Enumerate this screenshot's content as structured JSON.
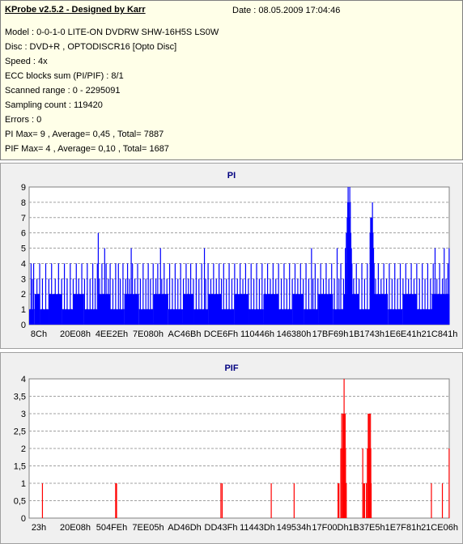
{
  "header": {
    "app_title": "KProbe v2.5.2 - Designed by Karr",
    "date": "Date : 08.05.2009 17:04:46",
    "lines": [
      "Model : 0-0-1-0 LITE-ON DVDRW SHW-16H5S  LS0W",
      "Disc : DVD+R , OPTODISCR16 [Opto Disc]",
      "Speed : 4x",
      "ECC blocks sum (PI/PIF) : 8/1",
      "Scanned range : 0 - 2295091",
      "Sampling count : 119420",
      "Errors : 0",
      "PI Max= 9 , Average= 0,45 , Total= 7887",
      "PIF Max= 4 , Average= 0,10 , Total= 1687"
    ]
  },
  "colors": {
    "pi_bar": "#0000ff",
    "pif_bar": "#ff0000",
    "title": "#000080",
    "plot_bg": "#ffffff"
  },
  "chart_data": [
    {
      "type": "bar",
      "title": "PI",
      "grid": true,
      "ylim": [
        0,
        9
      ],
      "y_ticks": [
        "0",
        "1",
        "2",
        "3",
        "4",
        "5",
        "6",
        "7",
        "8",
        "9"
      ],
      "x_tick_labels": [
        "8Ch",
        "20E08h",
        "4EE2Eh",
        "7E080h",
        "AC46Bh",
        "DCE6Fh",
        "110446h",
        "146380h",
        "17BF69h",
        "1B1743h",
        "1E6E41h",
        "21C841h"
      ],
      "xlim": [
        0,
        2295091
      ],
      "baseline": [
        [
          0,
          1
        ],
        [
          30000,
          2
        ],
        [
          60000,
          1
        ],
        [
          110000,
          2
        ],
        [
          180000,
          1
        ],
        [
          240000,
          2
        ],
        [
          300000,
          1
        ],
        [
          380000,
          2
        ],
        [
          440000,
          1
        ],
        [
          520000,
          2
        ],
        [
          600000,
          1
        ],
        [
          680000,
          2
        ],
        [
          760000,
          1
        ],
        [
          840000,
          2
        ],
        [
          900000,
          1
        ],
        [
          980000,
          2
        ],
        [
          1050000,
          1
        ],
        [
          1120000,
          2
        ],
        [
          1200000,
          1
        ],
        [
          1280000,
          2
        ],
        [
          1360000,
          1
        ],
        [
          1440000,
          2
        ],
        [
          1500000,
          1
        ],
        [
          1580000,
          2
        ],
        [
          1660000,
          1
        ],
        [
          1720000,
          2
        ],
        [
          1800000,
          1
        ],
        [
          1880000,
          2
        ],
        [
          1960000,
          1
        ],
        [
          2040000,
          2
        ],
        [
          2120000,
          1
        ],
        [
          2200000,
          2
        ],
        [
          2295091,
          1
        ]
      ],
      "spikes": [
        [
          8000,
          4
        ],
        [
          15000,
          3
        ],
        [
          22000,
          4
        ],
        [
          40000,
          3
        ],
        [
          55000,
          4
        ],
        [
          70000,
          3
        ],
        [
          88000,
          4
        ],
        [
          105000,
          3
        ],
        [
          120000,
          4
        ],
        [
          140000,
          3
        ],
        [
          158000,
          4
        ],
        [
          175000,
          3
        ],
        [
          190000,
          4
        ],
        [
          205000,
          3
        ],
        [
          222000,
          4
        ],
        [
          238000,
          3
        ],
        [
          255000,
          4
        ],
        [
          268000,
          3
        ],
        [
          285000,
          4
        ],
        [
          300000,
          3
        ],
        [
          315000,
          4
        ],
        [
          330000,
          3
        ],
        [
          345000,
          4
        ],
        [
          358000,
          3
        ],
        [
          370000,
          4
        ],
        [
          375000,
          6
        ],
        [
          382000,
          3
        ],
        [
          395000,
          4
        ],
        [
          410000,
          5
        ],
        [
          418000,
          4
        ],
        [
          430000,
          3
        ],
        [
          440000,
          4
        ],
        [
          455000,
          3
        ],
        [
          470000,
          4
        ],
        [
          485000,
          4
        ],
        [
          495000,
          3
        ],
        [
          510000,
          4
        ],
        [
          525000,
          3
        ],
        [
          535000,
          4
        ],
        [
          545000,
          3
        ],
        [
          555000,
          5
        ],
        [
          562000,
          4
        ],
        [
          575000,
          3
        ],
        [
          590000,
          4
        ],
        [
          605000,
          3
        ],
        [
          620000,
          4
        ],
        [
          635000,
          3
        ],
        [
          648000,
          4
        ],
        [
          660000,
          3
        ],
        [
          675000,
          4
        ],
        [
          690000,
          3
        ],
        [
          700000,
          4
        ],
        [
          715000,
          5
        ],
        [
          722000,
          3
        ],
        [
          735000,
          4
        ],
        [
          750000,
          3
        ],
        [
          765000,
          4
        ],
        [
          780000,
          3
        ],
        [
          795000,
          4
        ],
        [
          810000,
          3
        ],
        [
          825000,
          4
        ],
        [
          840000,
          3
        ],
        [
          855000,
          4
        ],
        [
          868000,
          3
        ],
        [
          880000,
          4
        ],
        [
          895000,
          3
        ],
        [
          910000,
          4
        ],
        [
          925000,
          3
        ],
        [
          940000,
          4
        ],
        [
          955000,
          5
        ],
        [
          962000,
          3
        ],
        [
          975000,
          4
        ],
        [
          990000,
          3
        ],
        [
          1005000,
          4
        ],
        [
          1020000,
          3
        ],
        [
          1035000,
          4
        ],
        [
          1048000,
          3
        ],
        [
          1060000,
          4
        ],
        [
          1075000,
          3
        ],
        [
          1090000,
          4
        ],
        [
          1105000,
          3
        ],
        [
          1120000,
          4
        ],
        [
          1135000,
          3
        ],
        [
          1150000,
          4
        ],
        [
          1165000,
          3
        ],
        [
          1180000,
          4
        ],
        [
          1195000,
          3
        ],
        [
          1210000,
          4
        ],
        [
          1225000,
          3
        ],
        [
          1240000,
          4
        ],
        [
          1255000,
          3
        ],
        [
          1270000,
          4
        ],
        [
          1285000,
          3
        ],
        [
          1300000,
          4
        ],
        [
          1315000,
          3
        ],
        [
          1330000,
          4
        ],
        [
          1345000,
          3
        ],
        [
          1360000,
          4
        ],
        [
          1375000,
          3
        ],
        [
          1390000,
          4
        ],
        [
          1405000,
          3
        ],
        [
          1420000,
          4
        ],
        [
          1435000,
          3
        ],
        [
          1450000,
          4
        ],
        [
          1465000,
          3
        ],
        [
          1480000,
          4
        ],
        [
          1495000,
          3
        ],
        [
          1510000,
          4
        ],
        [
          1525000,
          3
        ],
        [
          1540000,
          5
        ],
        [
          1548000,
          3
        ],
        [
          1560000,
          4
        ],
        [
          1575000,
          3
        ],
        [
          1590000,
          4
        ],
        [
          1605000,
          3
        ],
        [
          1620000,
          4
        ],
        [
          1635000,
          3
        ],
        [
          1650000,
          4
        ],
        [
          1665000,
          3
        ],
        [
          1680000,
          5
        ],
        [
          1690000,
          3
        ],
        [
          1700000,
          4
        ],
        [
          1715000,
          3
        ],
        [
          1728000,
          4
        ],
        [
          1740000,
          3
        ],
        [
          1755000,
          4
        ],
        [
          1770000,
          3
        ],
        [
          1785000,
          4
        ],
        [
          1800000,
          3
        ],
        [
          1815000,
          4
        ],
        [
          1830000,
          3
        ],
        [
          1845000,
          4
        ],
        [
          1860000,
          3
        ],
        [
          1875000,
          4
        ],
        [
          1890000,
          3
        ],
        [
          1905000,
          4
        ],
        [
          1920000,
          3
        ],
        [
          1935000,
          4
        ],
        [
          1950000,
          3
        ],
        [
          1965000,
          4
        ],
        [
          1980000,
          3
        ],
        [
          1995000,
          4
        ],
        [
          2010000,
          3
        ],
        [
          2025000,
          4
        ],
        [
          2040000,
          3
        ],
        [
          2055000,
          4
        ],
        [
          2070000,
          3
        ],
        [
          2085000,
          4
        ],
        [
          2100000,
          3
        ],
        [
          2115000,
          4
        ],
        [
          2130000,
          3
        ],
        [
          2145000,
          4
        ],
        [
          2160000,
          3
        ],
        [
          2175000,
          4
        ],
        [
          2190000,
          3
        ],
        [
          2205000,
          4
        ],
        [
          2215000,
          5
        ],
        [
          2225000,
          3
        ],
        [
          2240000,
          4
        ],
        [
          2255000,
          3
        ],
        [
          2265000,
          5
        ],
        [
          2275000,
          3
        ],
        [
          2285000,
          4
        ],
        [
          2292000,
          5
        ],
        [
          1725000,
          5
        ],
        [
          1730000,
          6
        ],
        [
          1735000,
          7
        ],
        [
          1738000,
          8
        ],
        [
          1740000,
          9
        ],
        [
          1743000,
          8
        ],
        [
          1746000,
          7
        ],
        [
          1749000,
          9
        ],
        [
          1752000,
          8
        ],
        [
          1755000,
          6
        ],
        [
          1758000,
          5
        ],
        [
          1761000,
          4
        ],
        [
          1860000,
          6
        ],
        [
          1863000,
          7
        ],
        [
          1866000,
          6
        ],
        [
          1868000,
          7
        ],
        [
          1870000,
          7
        ],
        [
          1873000,
          8
        ],
        [
          1876000,
          6
        ],
        [
          1879000,
          5
        ],
        [
          1882000,
          4
        ]
      ]
    },
    {
      "type": "bar",
      "title": "PIF",
      "grid": true,
      "ylim": [
        0,
        4
      ],
      "y_ticks": [
        "0",
        "0,5",
        "1",
        "1,5",
        "2",
        "2,5",
        "3",
        "3,5",
        "4"
      ],
      "x_tick_labels": [
        "23h",
        "20E08h",
        "504FEh",
        "7EE05h",
        "AD46Dh",
        "DD43Fh",
        "11443Dh",
        "149534h",
        "17F00Dh",
        "1B37E5h",
        "1E7F81h",
        "21CE06h"
      ],
      "xlim": [
        0,
        2295091
      ],
      "bars": [
        [
          70000,
          1
        ],
        [
          470000,
          1
        ],
        [
          475000,
          1
        ],
        [
          1045000,
          1
        ],
        [
          1052000,
          1
        ],
        [
          1320000,
          1
        ],
        [
          1445000,
          1
        ],
        [
          1685000,
          1
        ],
        [
          1690000,
          1
        ],
        [
          1700000,
          2
        ],
        [
          1705000,
          3
        ],
        [
          1710000,
          2
        ],
        [
          1712000,
          3
        ],
        [
          1714000,
          3
        ],
        [
          1716000,
          2
        ],
        [
          1718000,
          4
        ],
        [
          1720000,
          3
        ],
        [
          1722000,
          2
        ],
        [
          1724000,
          3
        ],
        [
          1726000,
          2
        ],
        [
          1728000,
          1
        ],
        [
          1730000,
          1
        ],
        [
          1820000,
          2
        ],
        [
          1825000,
          1
        ],
        [
          1830000,
          1
        ],
        [
          1840000,
          1
        ],
        [
          1845000,
          2
        ],
        [
          1850000,
          3
        ],
        [
          1853000,
          3
        ],
        [
          1856000,
          3
        ],
        [
          1858000,
          2
        ],
        [
          1860000,
          1
        ],
        [
          1862000,
          3
        ],
        [
          1864000,
          2
        ],
        [
          1866000,
          1
        ],
        [
          2195000,
          1
        ],
        [
          2255000,
          1
        ],
        [
          2292000,
          2
        ]
      ]
    }
  ]
}
